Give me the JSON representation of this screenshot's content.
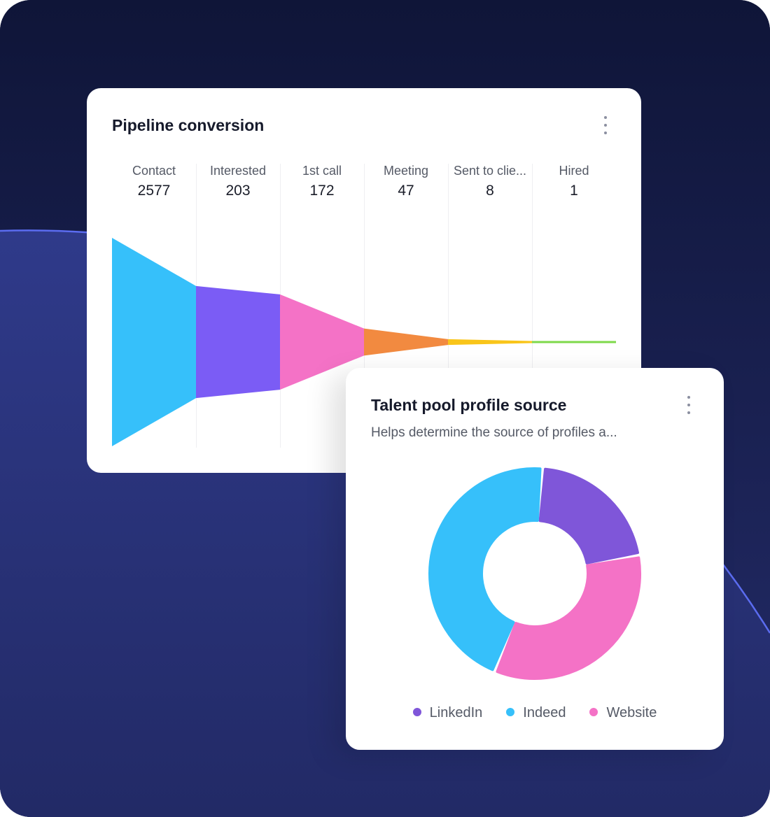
{
  "colors": {
    "bg_top": "#0f1538",
    "bg_bottom": "#242c6a",
    "curve": "#5b6cf0"
  },
  "pipeline": {
    "title": "Pipeline conversion",
    "menu_icon": "kebab-icon",
    "chart_data": {
      "type": "funnel",
      "categories": [
        "Contact",
        "Interested",
        "1st call",
        "Meeting",
        "Sent to clie...",
        "Hired"
      ],
      "values": [
        2577,
        203,
        172,
        47,
        8,
        1
      ],
      "colors": [
        "#36c0fa",
        "#7b5cf5",
        "#f472c6",
        "#f28a40",
        "#f9c51a",
        "#7ed94a"
      ]
    }
  },
  "talent": {
    "title": "Talent pool profile source",
    "subtitle": "Helps determine the source of profiles a...",
    "menu_icon": "kebab-icon",
    "chart_data": {
      "type": "pie",
      "donut": true,
      "categories": [
        "LinkedIn",
        "Website",
        "Indeed"
      ],
      "values": [
        21,
        34,
        45
      ],
      "colors": [
        "#7f56d9",
        "#f472c6",
        "#36c0fa"
      ],
      "legend": [
        {
          "label": "LinkedIn",
          "color": "#7f56d9"
        },
        {
          "label": "Indeed",
          "color": "#36c0fa"
        },
        {
          "label": "Website",
          "color": "#f472c6"
        }
      ],
      "legend_position": "bottom"
    }
  }
}
